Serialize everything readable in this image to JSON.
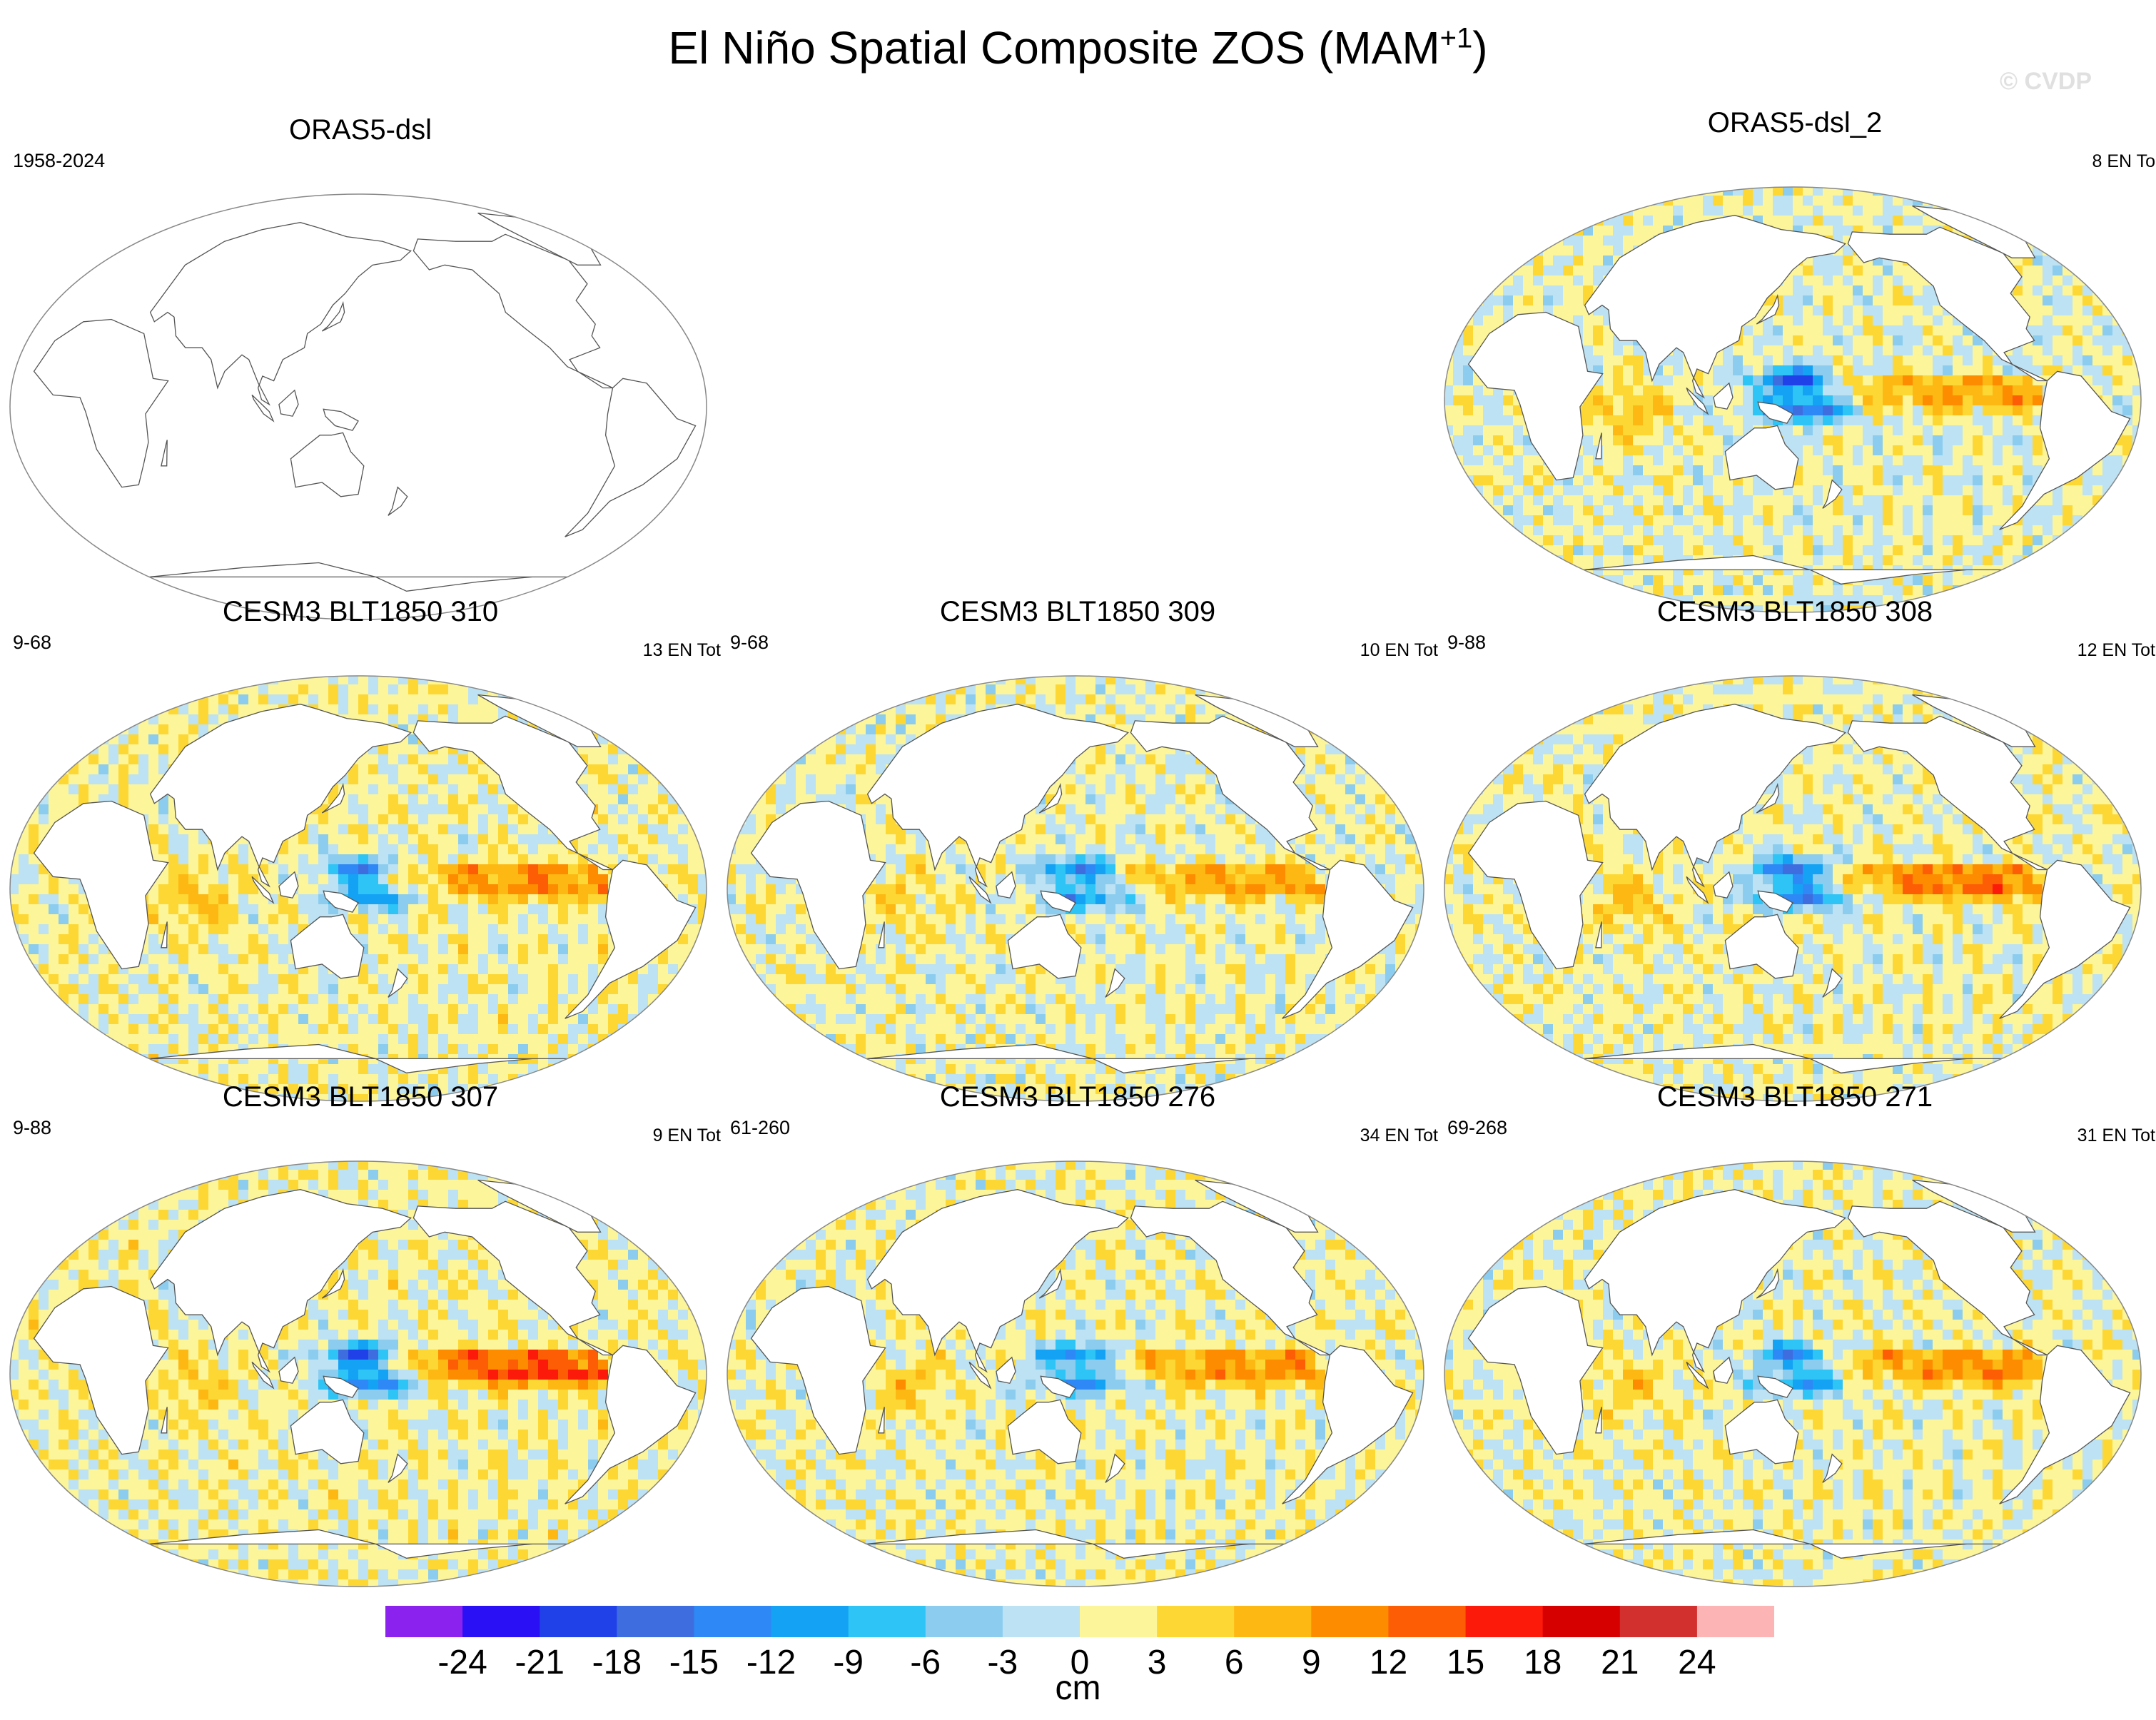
{
  "figure": {
    "title_main": "El Niño Spatial Composite ZOS (MAM",
    "title_sup": "+1",
    "title_close": ")",
    "copyright": "© CVDP"
  },
  "panels": [
    {
      "title": "ORAS5-dsl",
      "years": "1958-2024",
      "count": "",
      "kind": "empty"
    },
    {
      "title": "ORAS5-dsl_2",
      "years": "",
      "count": "8 EN To",
      "kind": "filled"
    },
    {
      "title": "CESM3 BLT1850 310",
      "years": "9-68",
      "count": "13 EN Tot",
      "kind": "filled"
    },
    {
      "title": "CESM3 BLT1850 309",
      "years": "9-68",
      "count": "10 EN Tot",
      "kind": "filled"
    },
    {
      "title": "CESM3 BLT1850 308",
      "years": "9-88",
      "count": "12 EN Tot",
      "kind": "filled"
    },
    {
      "title": "CESM3 BLT1850 307",
      "years": "9-88",
      "count": "9 EN Tot",
      "kind": "filled"
    },
    {
      "title": "CESM3 BLT1850 276",
      "years": "61-260",
      "count": "34 EN Tot",
      "kind": "filled"
    },
    {
      "title": "CESM3 BLT1850 271",
      "years": "69-268",
      "count": "31 EN Tot",
      "kind": "filled"
    }
  ],
  "chart_data": {
    "type": "heatmap",
    "title": "El Niño Spatial Composite ZOS (MAM+1)",
    "variable": "ZOS",
    "units": "cm",
    "colorbar": {
      "levels": [
        -24,
        -21,
        -18,
        -15,
        -12,
        -9,
        -6,
        -3,
        0,
        3,
        6,
        9,
        12,
        15,
        18,
        21,
        24
      ],
      "tick_labels": [
        "-24",
        "-21",
        "-18",
        "-15",
        "-12",
        "-9",
        "-6",
        "-3",
        "0",
        "3",
        "6",
        "9",
        "12",
        "15",
        "18",
        "21",
        "24"
      ],
      "colors": [
        "#8b22ee",
        "#2a10f5",
        "#2040e8",
        "#3e6de0",
        "#2e88f5",
        "#14a2f5",
        "#2ec4f5",
        "#8ccdef",
        "#bde2f3",
        "#fcf59a",
        "#fdd835",
        "#fdb813",
        "#fd8c00",
        "#fd5d05",
        "#fc1a0b",
        "#d60000",
        "#d22f2f",
        "#fcb4b4"
      ],
      "unit_label": "cm"
    },
    "panels": [
      {
        "name": "ORAS5-dsl",
        "period": "1958-2024",
        "events": null,
        "data": "none shown"
      },
      {
        "name": "ORAS5-dsl_2",
        "events": 8,
        "max_positive": 12,
        "min_negative": -21
      },
      {
        "name": "CESM3 BLT1850 310",
        "events": 13,
        "max_positive": 12,
        "min_negative": -15
      },
      {
        "name": "CESM3 BLT1850 309",
        "events": 10,
        "max_positive": 9,
        "min_negative": -15
      },
      {
        "name": "CESM3 BLT1850 308",
        "events": 12,
        "max_positive": 12,
        "min_negative": -18
      },
      {
        "name": "CESM3 BLT1850 307",
        "events": 9,
        "max_positive": 18,
        "min_negative": -21
      },
      {
        "name": "CESM3 BLT1850 276",
        "events": 34,
        "max_positive": 9,
        "min_negative": -15
      },
      {
        "name": "CESM3 BLT1850 271",
        "events": 31,
        "max_positive": 9,
        "min_negative": -15
      }
    ]
  }
}
